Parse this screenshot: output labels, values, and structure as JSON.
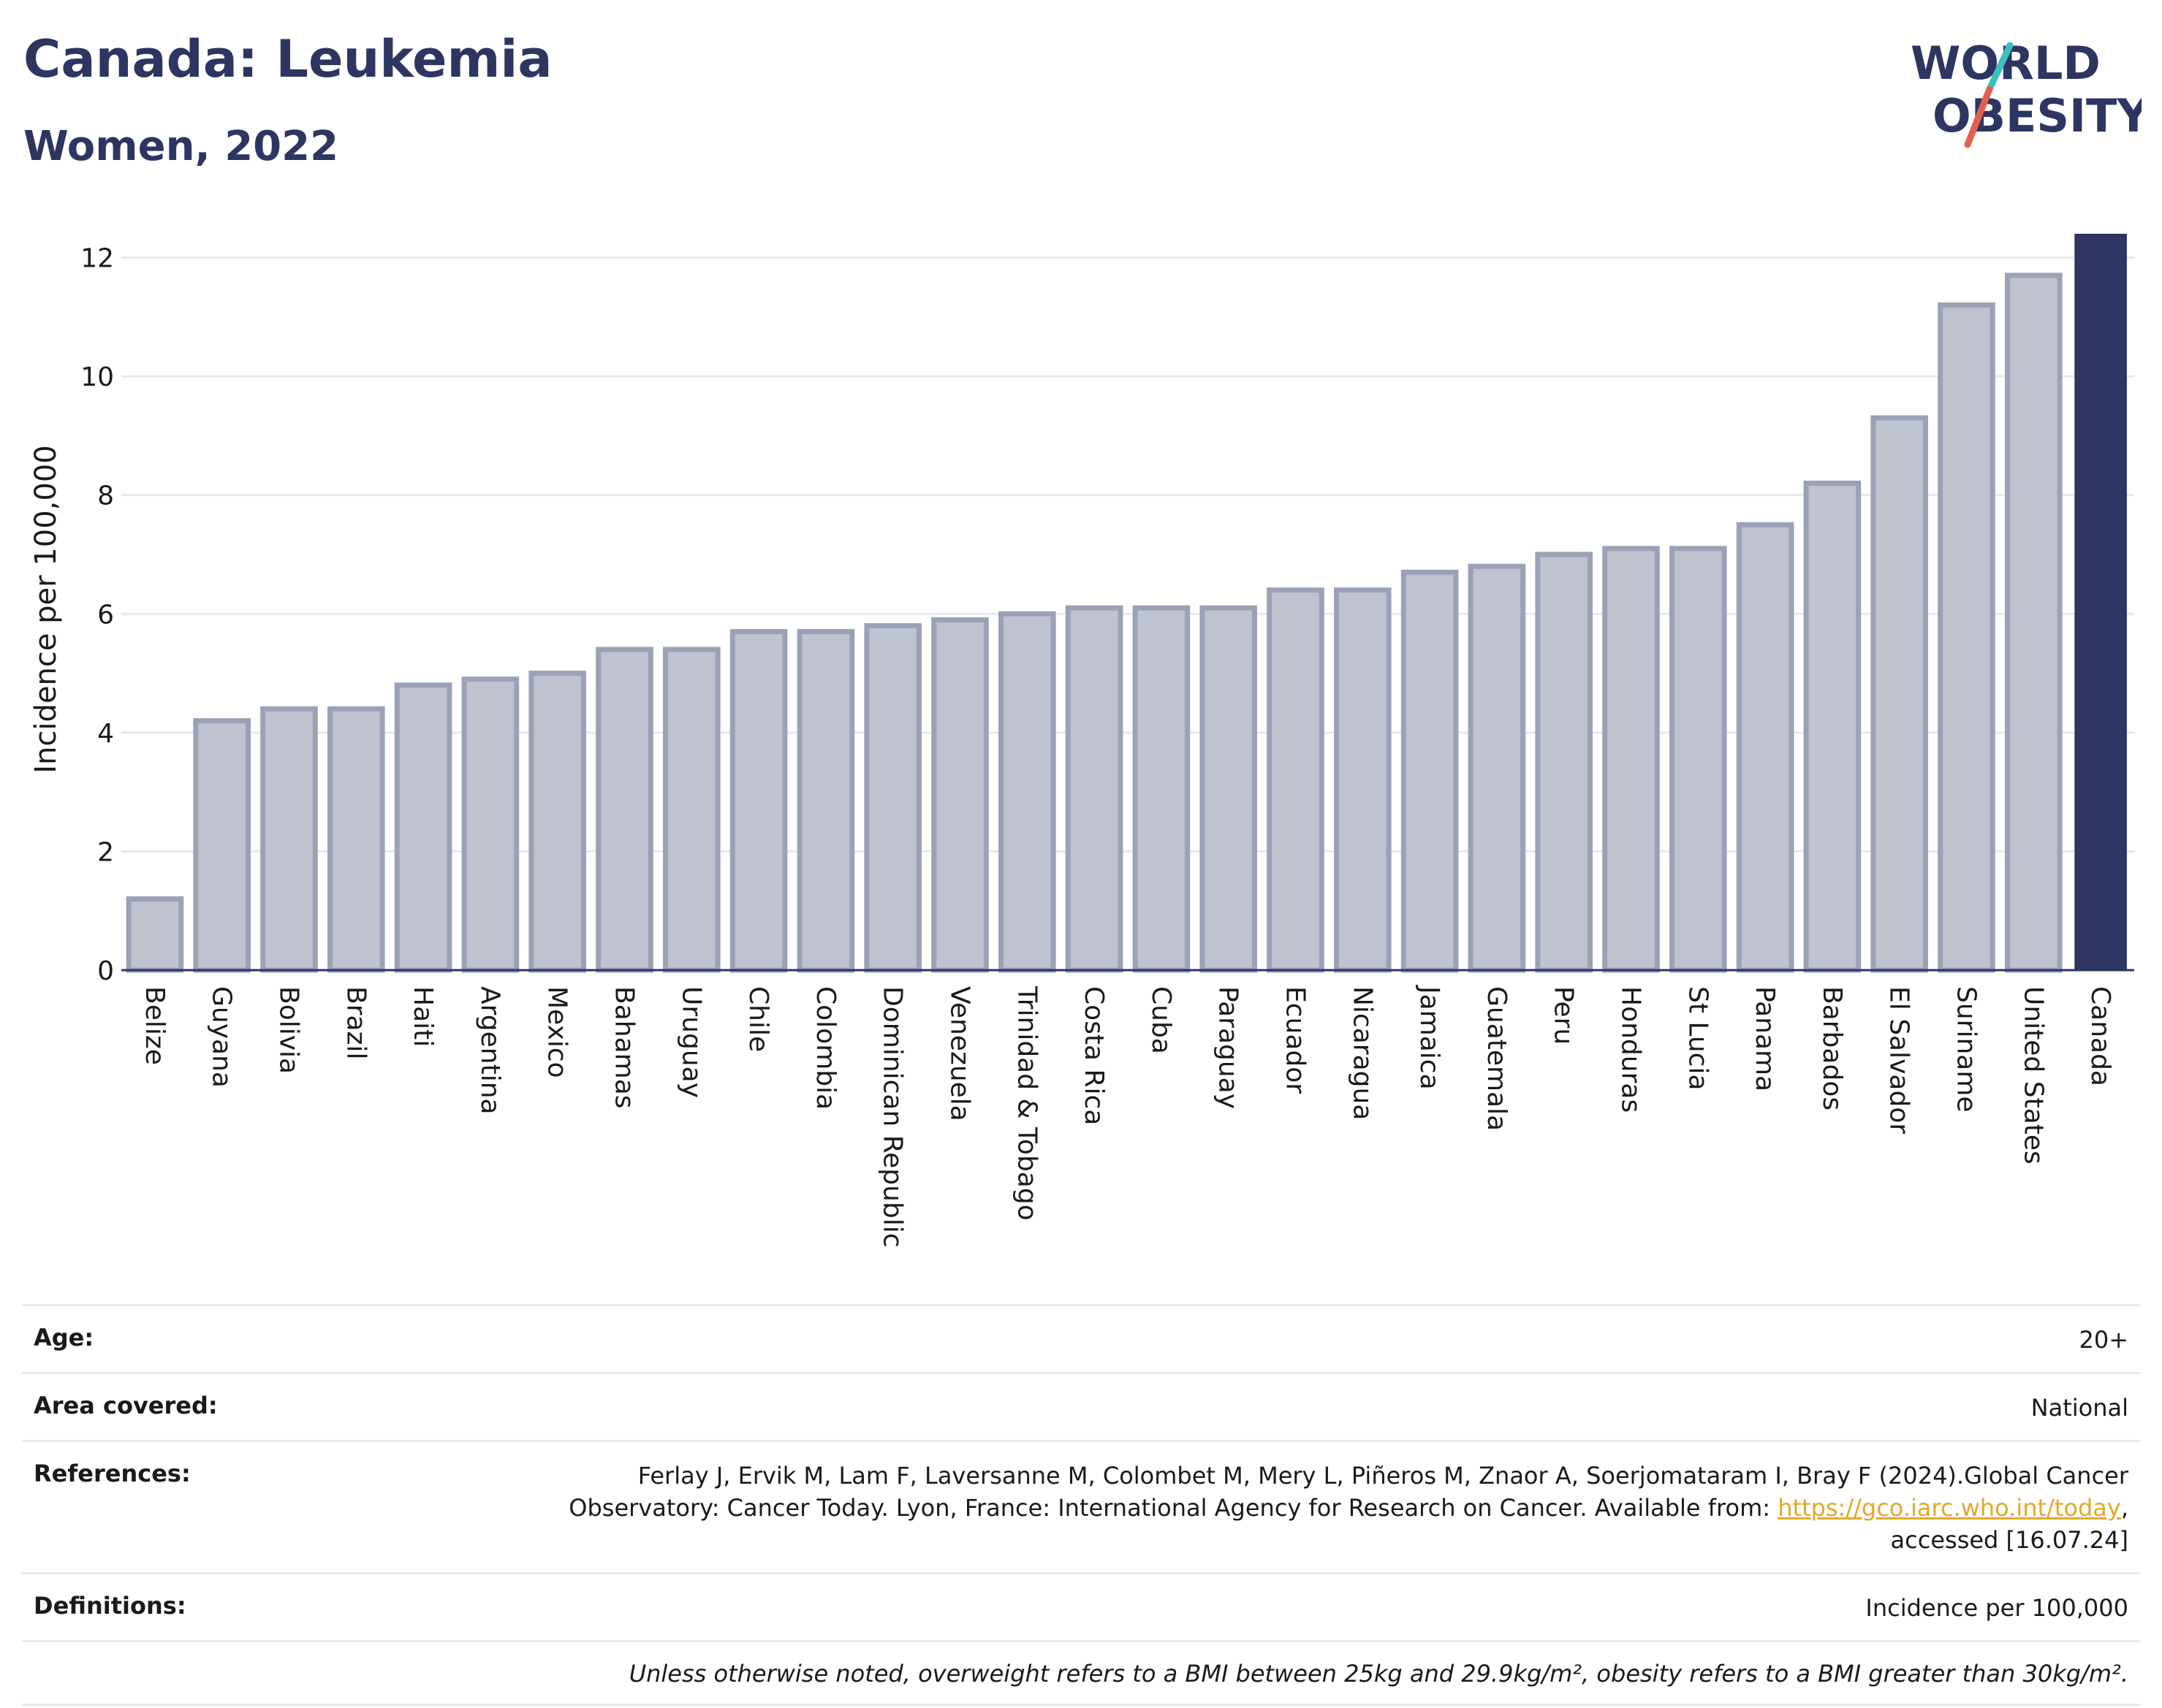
{
  "header": {
    "title": "Canada: Leukemia",
    "subtitle": "Women, 2022"
  },
  "logo": {
    "line1": "WORLD",
    "line2": "OBESITY",
    "colors": {
      "text": "#2d3561",
      "slash_teal": "#3bbfbf",
      "slash_red": "#e3604e"
    }
  },
  "chart_data": {
    "type": "bar",
    "ylabel": "Incidence per 100,000",
    "ylim": [
      0,
      12.4
    ],
    "yticks": [
      0,
      2,
      4,
      6,
      8,
      10,
      12
    ],
    "grid": true,
    "categories": [
      "Belize",
      "Guyana",
      "Bolivia",
      "Brazil",
      "Haiti",
      "Argentina",
      "Mexico",
      "Bahamas",
      "Uruguay",
      "Chile",
      "Colombia",
      "Dominican Republic",
      "Venezuela",
      "Trinidad & Tobago",
      "Costa Rica",
      "Cuba",
      "Paraguay",
      "Ecuador",
      "Nicaragua",
      "Jamaica",
      "Guatemala",
      "Peru",
      "Honduras",
      "St Lucia",
      "Panama",
      "Barbados",
      "El Salvador",
      "Suriname",
      "United States",
      "Canada"
    ],
    "values": [
      1.2,
      4.2,
      4.4,
      4.4,
      4.8,
      4.9,
      5.0,
      5.4,
      5.4,
      5.7,
      5.7,
      5.8,
      5.9,
      6.0,
      6.1,
      6.1,
      6.1,
      6.4,
      6.4,
      6.7,
      6.8,
      7.0,
      7.1,
      7.1,
      7.5,
      8.2,
      9.3,
      11.2,
      11.7,
      12.4
    ],
    "highlight": "Canada",
    "colors": {
      "bar": "#bfc3cf",
      "bar_border": "#9ba1b6",
      "highlight": "#2d3561"
    }
  },
  "meta": {
    "age_label": "Age:",
    "age_value": "20+",
    "area_label": "Area covered:",
    "area_value": "National",
    "references_label": "References:",
    "references_line1": "Ferlay J, Ervik M, Lam F, Laversanne M, Colombet M, Mery L, Piñeros M, Znaor A, Soerjomataram I, Bray F (2024).Global Cancer",
    "references_line2": "Observatory: Cancer Today. Lyon, France: International Agency for Research on Cancer. Available from: ",
    "references_link": "https://gco.iarc.who.int/today",
    "references_line2_end": ",",
    "references_line3": "accessed [16.07.24]",
    "definitions_label": "Definitions:",
    "definitions_value": "Incidence per 100,000",
    "note": "Unless otherwise noted, overweight refers to a BMI between 25kg and 29.9kg/m², obesity refers to a BMI greater than 30kg/m²."
  }
}
